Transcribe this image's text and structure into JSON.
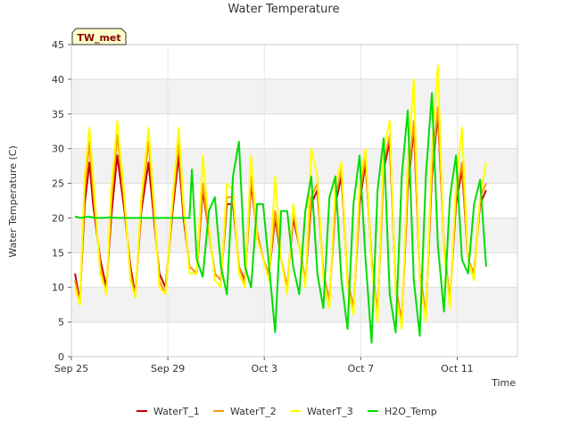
{
  "chart_data": {
    "type": "line",
    "title": "Water Temperature",
    "xlabel": "Time",
    "ylabel": "Water Temperature (C)",
    "badge": "TW_met",
    "ylim": [
      0,
      45
    ],
    "xlim": [
      0,
      18.5
    ],
    "y_ticks": [
      0,
      5,
      10,
      15,
      20,
      25,
      30,
      35,
      40,
      45
    ],
    "x_ticks": [
      {
        "day": 0,
        "label": "Sep 25"
      },
      {
        "day": 4,
        "label": "Sep 29"
      },
      {
        "day": 8,
        "label": "Oct 3"
      },
      {
        "day": 12,
        "label": "Oct 7"
      },
      {
        "day": 16,
        "label": "Oct 11"
      }
    ],
    "grid": true,
    "legend_position": "bottom",
    "series": [
      {
        "name": "WaterT_1",
        "color": "#cc0000",
        "x": [
          0.15,
          0.35,
          0.55,
          0.75,
          0.9,
          1.2,
          1.45,
          1.65,
          1.9,
          2.2,
          2.45,
          2.65,
          2.9,
          3.2,
          3.45,
          3.65,
          3.9,
          4.2,
          4.45,
          4.65,
          4.9,
          5.2,
          5.45,
          5.7,
          5.95,
          6.2,
          6.45,
          6.7,
          6.95,
          7.2,
          7.45,
          7.7,
          7.95,
          8.2,
          8.45,
          8.7,
          8.95,
          9.2,
          9.45,
          9.7,
          9.95,
          10.2,
          10.45,
          10.7,
          10.95,
          11.2,
          11.45,
          11.7,
          11.95,
          12.2,
          12.45,
          12.7,
          12.95,
          13.2,
          13.45,
          13.7,
          13.95,
          14.2,
          14.45,
          14.7,
          14.95,
          15.2,
          15.45,
          15.7,
          15.95,
          16.2,
          16.45,
          16.7,
          16.95,
          17.2
        ],
        "y": [
          12,
          8,
          22,
          28,
          22,
          14,
          10,
          20,
          29,
          21,
          13,
          9,
          21,
          28,
          19,
          12,
          10,
          21,
          29,
          20,
          13,
          12,
          24,
          18,
          12,
          11,
          22,
          22,
          13,
          11,
          25,
          18,
          14,
          12,
          20,
          14,
          10,
          20,
          16,
          11,
          22,
          24,
          12,
          8,
          22,
          26,
          11,
          7,
          22,
          28,
          14,
          6,
          27,
          31,
          10,
          5,
          24,
          33,
          12,
          6,
          26,
          35,
          16,
          8,
          22,
          27,
          14,
          12,
          22,
          24
        ]
      },
      {
        "name": "WaterT_2",
        "color": "#ff9900",
        "x": [
          0.15,
          0.35,
          0.55,
          0.75,
          0.9,
          1.2,
          1.45,
          1.65,
          1.9,
          2.2,
          2.45,
          2.65,
          2.9,
          3.2,
          3.45,
          3.65,
          3.9,
          4.2,
          4.45,
          4.65,
          4.9,
          5.2,
          5.45,
          5.7,
          5.95,
          6.2,
          6.45,
          6.7,
          6.95,
          7.2,
          7.45,
          7.7,
          7.95,
          8.2,
          8.45,
          8.7,
          8.95,
          9.2,
          9.45,
          9.7,
          9.95,
          10.2,
          10.45,
          10.7,
          10.95,
          11.2,
          11.45,
          11.7,
          11.95,
          12.2,
          12.45,
          12.7,
          12.95,
          13.2,
          13.45,
          13.7,
          13.95,
          14.2,
          14.45,
          14.7,
          14.95,
          15.2,
          15.45,
          15.7,
          15.95,
          16.2,
          16.45,
          16.7,
          16.95,
          17.2
        ],
        "y": [
          11,
          7.5,
          24,
          31,
          24,
          13,
          9,
          22,
          32,
          22,
          12,
          8.5,
          22,
          31,
          20,
          11,
          9,
          22,
          31,
          21,
          13,
          12,
          25,
          18,
          12,
          11,
          23,
          23,
          13,
          10.5,
          26,
          18,
          14,
          12,
          21,
          14,
          10,
          21,
          16,
          11,
          23,
          25,
          12,
          8,
          23,
          27,
          11,
          7,
          23,
          29,
          14,
          6,
          28,
          32,
          10,
          5,
          25,
          34,
          12,
          6,
          27,
          36,
          16,
          8,
          23,
          28,
          14,
          12,
          23,
          25
        ]
      },
      {
        "name": "WaterT_3",
        "color": "#ffff00",
        "x": [
          0.15,
          0.35,
          0.55,
          0.75,
          0.9,
          1.2,
          1.45,
          1.65,
          1.9,
          2.2,
          2.45,
          2.65,
          2.9,
          3.2,
          3.45,
          3.65,
          3.9,
          4.2,
          4.45,
          4.65,
          4.9,
          5.2,
          5.45,
          5.7,
          5.95,
          6.2,
          6.45,
          6.7,
          6.95,
          7.2,
          7.45,
          7.7,
          7.95,
          8.2,
          8.45,
          8.7,
          8.95,
          9.2,
          9.45,
          9.7,
          9.95,
          10.2,
          10.45,
          10.7,
          10.95,
          11.2,
          11.45,
          11.7,
          11.95,
          12.2,
          12.45,
          12.7,
          12.95,
          13.2,
          13.45,
          13.7,
          13.95,
          14.2,
          14.45,
          14.7,
          14.95,
          15.2,
          15.45,
          15.7,
          15.95,
          16.2,
          16.45,
          16.7,
          16.95,
          17.2
        ],
        "y": [
          10,
          7.5,
          26,
          33,
          26,
          12,
          9,
          24,
          34,
          23,
          11,
          8.5,
          23,
          33,
          21,
          10,
          9,
          23,
          33,
          22,
          12,
          12,
          29,
          19,
          11,
          10,
          25,
          24,
          12,
          10,
          29,
          17,
          14,
          11,
          26,
          14,
          9,
          22,
          16,
          10,
          30,
          26,
          11,
          7,
          25,
          28,
          10,
          6,
          25,
          30,
          13,
          5,
          30,
          34,
          9,
          4,
          28,
          40,
          11,
          5,
          30,
          42,
          15,
          7,
          25,
          33,
          14,
          11,
          23,
          28
        ]
      },
      {
        "name": "H2O_Temp",
        "color": "#00dd00",
        "x": [
          0.15,
          0.4,
          0.7,
          1.0,
          1.3,
          1.6,
          1.9,
          2.2,
          2.5,
          2.8,
          3.1,
          3.4,
          3.7,
          4.0,
          4.3,
          4.6,
          4.9,
          5.0,
          5.2,
          5.45,
          5.7,
          5.95,
          6.2,
          6.45,
          6.7,
          6.95,
          7.2,
          7.45,
          7.7,
          7.95,
          8.2,
          8.45,
          8.7,
          8.95,
          9.2,
          9.45,
          9.7,
          9.95,
          10.2,
          10.45,
          10.7,
          10.95,
          11.2,
          11.45,
          11.7,
          11.95,
          12.2,
          12.45,
          12.7,
          12.95,
          13.2,
          13.45,
          13.7,
          13.95,
          14.2,
          14.45,
          14.7,
          14.95,
          15.2,
          15.45,
          15.7,
          15.95,
          16.2,
          16.45,
          16.7,
          16.95,
          17.2
        ],
        "y": [
          20.2,
          20,
          20.2,
          20,
          20,
          20.1,
          20,
          20,
          20,
          20,
          20,
          20,
          20,
          20,
          20,
          20,
          20,
          27,
          14,
          11.5,
          21,
          23,
          13,
          9,
          26,
          31,
          13,
          10,
          22,
          22,
          13,
          3.5,
          21,
          21,
          13,
          9,
          21,
          26,
          12,
          7,
          23,
          26,
          11,
          4,
          22,
          29,
          14,
          2,
          24,
          31.5,
          9,
          3.5,
          26,
          35.5,
          11,
          3,
          26,
          38,
          16,
          6.5,
          23,
          29,
          14,
          12,
          22,
          25.5,
          13
        ]
      }
    ]
  }
}
